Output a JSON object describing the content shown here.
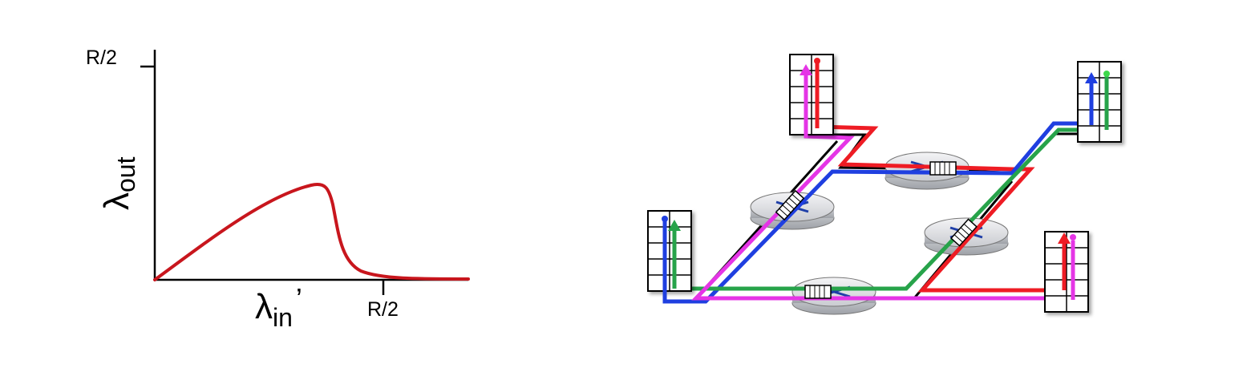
{
  "throughput_plot": {
    "y_tick_label": "R/2",
    "x_tick_label": "R/2",
    "y_axis_symbol": "λ",
    "y_axis_subscript": "out",
    "x_axis_symbol": "λ",
    "x_axis_subscript": "in",
    "x_axis_prime": "’",
    "curve_color": "#c8161d"
  },
  "network": {
    "flow_colors": {
      "red": "#ee1c24",
      "blue": "#1f3fe0",
      "green": "#27a34a",
      "magenta": "#e535e6",
      "black": "#000000"
    },
    "router_icon": "router-icon",
    "host_icon": "host-buffer-icon"
  }
}
